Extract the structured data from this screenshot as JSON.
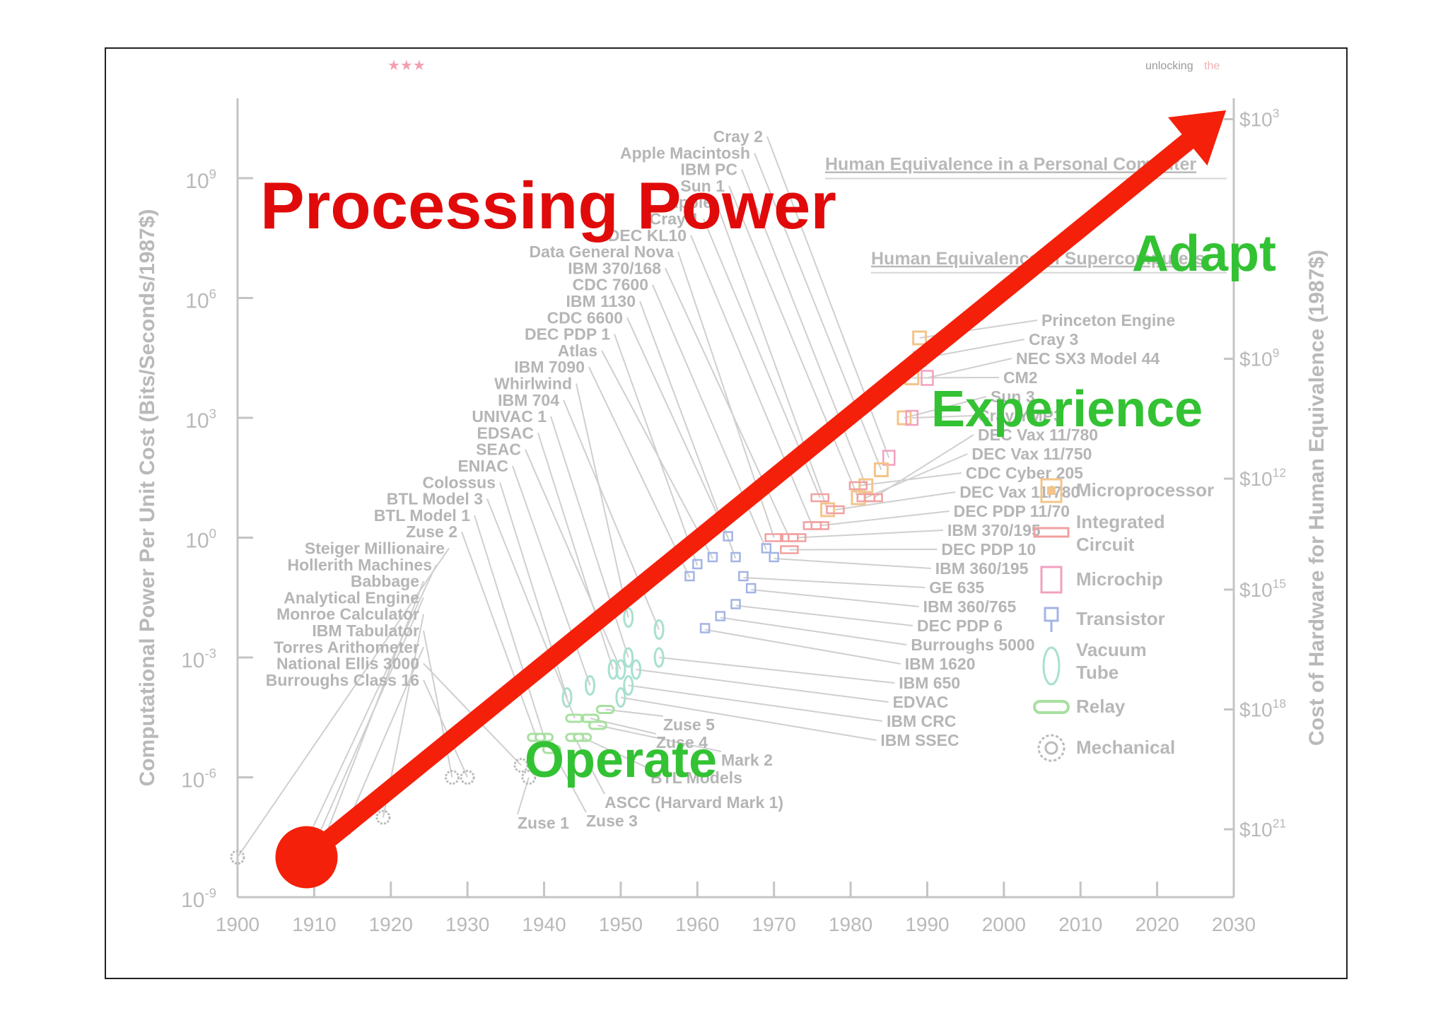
{
  "header": {
    "corner_text_1": "unlocking",
    "corner_text_2": "the"
  },
  "title": "Processing Power",
  "phases": [
    {
      "label": "Operate",
      "year": 1950,
      "value": 3e-06
    },
    {
      "label": "Experience",
      "year": 1994,
      "value": 300.0
    },
    {
      "label": "Adapt",
      "year": 2016,
      "value": 3000000.0
    }
  ],
  "colors": {
    "title": "#e10a0a",
    "arrow": "#f4200a",
    "phase": "#33c233",
    "axis": "#c4c4c4",
    "text_faded": "#b5b5b5"
  },
  "chart_data": {
    "type": "scatter",
    "xlabel": "",
    "ylabel": "Computational Power Per Unit Cost (Bits/Seconds/1987$)",
    "y2label": "Cost of Hardware for Human Equivalence (1987$)",
    "x_ticks": [
      1900,
      1910,
      1920,
      1930,
      1940,
      1950,
      1960,
      1970,
      1980,
      1990,
      2000,
      2010,
      2020,
      2030
    ],
    "xlim": [
      1900,
      2030
    ],
    "y_scale": "log",
    "ylim": [
      1e-09,
      100000000000.0
    ],
    "y_ticks": [
      {
        "base": "10",
        "exp": "-9",
        "value": 1e-09
      },
      {
        "base": "10",
        "exp": "-6",
        "value": 1e-06
      },
      {
        "base": "10",
        "exp": "-3",
        "value": 0.001
      },
      {
        "base": "10",
        "exp": "0",
        "value": 1
      },
      {
        "base": "10",
        "exp": "3",
        "value": 1000.0
      },
      {
        "base": "10",
        "exp": "6",
        "value": 1000000.0
      },
      {
        "base": "10",
        "exp": "9",
        "value": 1000000000.0
      }
    ],
    "y2_ticks": [
      {
        "base": "$10",
        "exp": "3",
        "value": 30000000000.0
      },
      {
        "base": "$10",
        "exp": "9",
        "value": 30000.0
      },
      {
        "base": "$10",
        "exp": "12",
        "value": 30.0
      },
      {
        "base": "$10",
        "exp": "15",
        "value": 0.05
      },
      {
        "base": "$10",
        "exp": "18",
        "value": 5e-05
      },
      {
        "base": "$10",
        "exp": "21",
        "value": 5e-08
      }
    ],
    "reference_lines": [
      "Human Equivalence in a Personal Computer",
      "Human Equivalence in Supercomputers"
    ],
    "legend": {
      "position": "right",
      "entries": [
        {
          "label": "Microprocessor",
          "icon": "microprocessor-icon",
          "color": "#f3c58a"
        },
        {
          "label": "Integrated Circuit",
          "icon": "integrated-circuit-icon",
          "color": "#f2a0a0"
        },
        {
          "label": "Microchip",
          "icon": "microchip-icon",
          "color": "#f2a0c0"
        },
        {
          "label": "Transistor",
          "icon": "transistor-icon",
          "color": "#a4b4e4"
        },
        {
          "label": "Vacuum Tube",
          "icon": "vacuum-tube-icon",
          "color": "#a8e0d0"
        },
        {
          "label": "Relay",
          "icon": "relay-icon",
          "color": "#a8e0a0"
        },
        {
          "label": "Mechanical",
          "icon": "mechanical-icon",
          "color": "#bbbbbb"
        }
      ]
    },
    "trend": {
      "start": {
        "year": 1909,
        "value": 1e-08
      },
      "end": {
        "year": 2029,
        "value": 50000000000.0
      }
    },
    "machines_left": [
      {
        "name": "Cray 2",
        "tech": "microchip",
        "year": 1985,
        "value": 100
      },
      {
        "name": "Apple Macintosh",
        "tech": "microprocessor",
        "year": 1984,
        "value": 50
      },
      {
        "name": "IBM PC",
        "tech": "microprocessor",
        "year": 1982,
        "value": 20
      },
      {
        "name": "Sun 1",
        "tech": "microprocessor",
        "year": 1981,
        "value": 10
      },
      {
        "name": "Apple",
        "tech": "microprocessor",
        "year": 1977,
        "value": 5
      },
      {
        "name": "Cray 1",
        "tech": "integrated circuit",
        "year": 1976,
        "value": 10
      },
      {
        "name": "DEC KL10",
        "tech": "integrated circuit",
        "year": 1975,
        "value": 2
      },
      {
        "name": "Data General Nova",
        "tech": "integrated circuit",
        "year": 1970,
        "value": 1
      },
      {
        "name": "IBM 370/168",
        "tech": "integrated circuit",
        "year": 1972,
        "value": 1
      },
      {
        "name": "CDC 7600",
        "tech": "transistor",
        "year": 1969,
        "value": 0.5
      },
      {
        "name": "IBM 1130",
        "tech": "transistor",
        "year": 1965,
        "value": 0.3
      },
      {
        "name": "CDC 6600",
        "tech": "transistor",
        "year": 1964,
        "value": 1
      },
      {
        "name": "DEC PDP 1",
        "tech": "transistor",
        "year": 1960,
        "value": 0.2
      },
      {
        "name": "Atlas",
        "tech": "transistor",
        "year": 1962,
        "value": 0.3
      },
      {
        "name": "IBM 7090",
        "tech": "transistor",
        "year": 1959,
        "value": 0.1
      },
      {
        "name": "Whirlwind",
        "tech": "vacuum tube",
        "year": 1951,
        "value": 0.01
      },
      {
        "name": "IBM 704",
        "tech": "vacuum tube",
        "year": 1955,
        "value": 0.005
      },
      {
        "name": "UNIVAC 1",
        "tech": "vacuum tube",
        "year": 1951,
        "value": 0.001
      },
      {
        "name": "EDSAC",
        "tech": "vacuum tube",
        "year": 1949,
        "value": 0.0005
      },
      {
        "name": "SEAC",
        "tech": "vacuum tube",
        "year": 1950,
        "value": 0.0005
      },
      {
        "name": "ENIAC",
        "tech": "vacuum tube",
        "year": 1946,
        "value": 0.0002
      },
      {
        "name": "Colossus",
        "tech": "vacuum tube",
        "year": 1943,
        "value": 0.0001
      },
      {
        "name": "BTL Model 3",
        "tech": "relay",
        "year": 1944,
        "value": 3e-05
      },
      {
        "name": "BTL Model 1",
        "tech": "relay",
        "year": 1940,
        "value": 1e-05
      },
      {
        "name": "Zuse 2",
        "tech": "relay",
        "year": 1939,
        "value": 1e-05
      },
      {
        "name": "Steiger Millionaire",
        "tech": "mechanical",
        "year": 1900,
        "value": 1e-08
      },
      {
        "name": "Hollerith Machines",
        "tech": "mechanical",
        "year": 1908,
        "value": 1e-08
      },
      {
        "name": "Babbage",
        "tech": "mechanical",
        "year": 1911,
        "value": 2e-08
      },
      {
        "name": "Analytical Engine",
        "tech": "mechanical",
        "year": 1910,
        "value": 2e-08
      },
      {
        "name": "Monroe Calculator",
        "tech": "mechanical",
        "year": 1919,
        "value": 1e-07
      },
      {
        "name": "IBM Tabulator",
        "tech": "mechanical",
        "year": 1928,
        "value": 1e-06
      },
      {
        "name": "Torres Arithometer",
        "tech": "mechanical",
        "year": 1914,
        "value": 5e-08
      },
      {
        "name": "National Ellis 3000",
        "tech": "mechanical",
        "year": 1937,
        "value": 2e-06
      },
      {
        "name": "Burroughs Class 16",
        "tech": "mechanical",
        "year": 1930,
        "value": 1e-06
      }
    ],
    "machines_right": [
      {
        "name": "Princeton Engine",
        "tech": "microprocessor",
        "year": 1989,
        "value": 100000.0
      },
      {
        "name": "Cray 3",
        "tech": "microchip",
        "year": 1989,
        "value": 30000.0
      },
      {
        "name": "NEC SX3 Model 44",
        "tech": "microchip",
        "year": 1990,
        "value": 10000.0
      },
      {
        "name": "CM2",
        "tech": "microprocessor",
        "year": 1988,
        "value": 10000.0
      },
      {
        "name": "Sun 3",
        "tech": "microprocessor",
        "year": 1987,
        "value": 1000.0
      },
      {
        "name": "Cray YMP3",
        "tech": "microchip",
        "year": 1988,
        "value": 1000.0
      },
      {
        "name": "DEC Vax 11/780",
        "tech": "integrated circuit",
        "year": 1983,
        "value": 10
      },
      {
        "name": "DEC Vax 11/750",
        "tech": "integrated circuit",
        "year": 1982,
        "value": 10
      },
      {
        "name": "CDC Cyber 205",
        "tech": "integrated circuit",
        "year": 1981,
        "value": 20
      },
      {
        "name": "DEC Vax 11/780",
        "tech": "integrated circuit",
        "year": 1978,
        "value": 5
      },
      {
        "name": "DEC PDP 11/70",
        "tech": "integrated circuit",
        "year": 1976,
        "value": 2
      },
      {
        "name": "IBM 370/195",
        "tech": "integrated circuit",
        "year": 1973,
        "value": 1
      },
      {
        "name": "DEC PDP 10",
        "tech": "integrated circuit",
        "year": 1972,
        "value": 0.5
      },
      {
        "name": "IBM 360/195",
        "tech": "transistor",
        "year": 1970,
        "value": 0.3
      },
      {
        "name": "GE 635",
        "tech": "transistor",
        "year": 1966,
        "value": 0.1
      },
      {
        "name": "IBM 360/765",
        "tech": "transistor",
        "year": 1967,
        "value": 0.05
      },
      {
        "name": "DEC PDP 6",
        "tech": "transistor",
        "year": 1965,
        "value": 0.02
      },
      {
        "name": "Burroughs 5000",
        "tech": "transistor",
        "year": 1963,
        "value": 0.01
      },
      {
        "name": "IBM 1620",
        "tech": "transistor",
        "year": 1961,
        "value": 0.005
      },
      {
        "name": "IBM 650",
        "tech": "vacuum tube",
        "year": 1955,
        "value": 0.001
      },
      {
        "name": "EDVAC",
        "tech": "vacuum tube",
        "year": 1952,
        "value": 0.0005
      },
      {
        "name": "IBM CRC",
        "tech": "vacuum tube",
        "year": 1951,
        "value": 0.0002
      },
      {
        "name": "IBM SSEC",
        "tech": "vacuum tube",
        "year": 1950,
        "value": 0.0001
      }
    ],
    "machines_bottom": [
      {
        "name": "Zuse 5",
        "tech": "relay",
        "year": 1948,
        "value": 5e-05
      },
      {
        "name": "Zuse 4",
        "tech": "relay",
        "year": 1946,
        "value": 3e-05
      },
      {
        "name": "Mark 2",
        "tech": "relay",
        "year": 1947,
        "value": 2e-05
      },
      {
        "name": "BTL Models",
        "tech": "relay",
        "year": 1945,
        "value": 1e-05
      },
      {
        "name": "ASCC (Harvard Mark 1)",
        "tech": "relay",
        "year": 1944,
        "value": 1e-05
      },
      {
        "name": "Zuse 1",
        "tech": "mechanical",
        "year": 1938,
        "value": 1e-06
      },
      {
        "name": "Zuse 3",
        "tech": "relay",
        "year": 1941,
        "value": 5e-06
      }
    ]
  }
}
